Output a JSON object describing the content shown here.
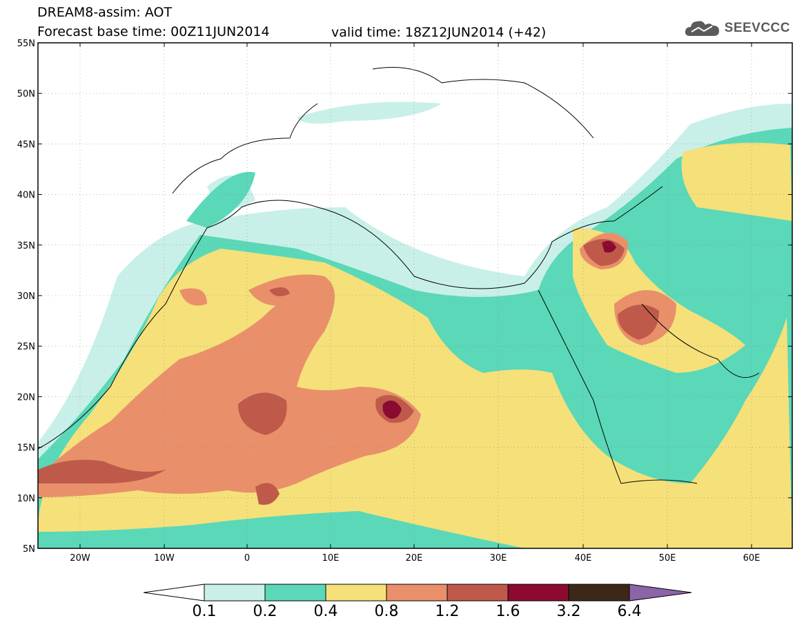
{
  "header": {
    "line1": "DREAM8-assim: AOT",
    "line2_left": "Forecast base time: 00Z11JUN2014",
    "line2_right": "valid time: 18Z12JUN2014 (+42)"
  },
  "logo": {
    "icon": "cloud-icon",
    "text": "SEEVCCC",
    "color": "#5b5b5b"
  },
  "map": {
    "lat_labels": [
      "55N",
      "50N",
      "45N",
      "40N",
      "35N",
      "30N",
      "25N",
      "20N",
      "15N",
      "10N",
      "5N"
    ],
    "lon_labels": [
      "20W",
      "10W",
      "0",
      "10E",
      "20E",
      "30E",
      "40E",
      "50E",
      "60E"
    ]
  },
  "colorbar": {
    "labels": [
      "0.1",
      "0.2",
      "0.4",
      "0.8",
      "1.2",
      "1.6",
      "3.2",
      "6.4"
    ],
    "colors": [
      "#ffffff",
      "#c8f0e8",
      "#5ad8b8",
      "#f5e07a",
      "#e9906a",
      "#bf5a4a",
      "#8b0a30",
      "#3c2818",
      "#8c64a8"
    ]
  },
  "palette": {
    "c1": "#c8f0e8",
    "c2": "#5ad8b8",
    "c3": "#f5e07a",
    "c4": "#e9906a",
    "c5": "#bf5a4a",
    "c6": "#8b0a30"
  }
}
